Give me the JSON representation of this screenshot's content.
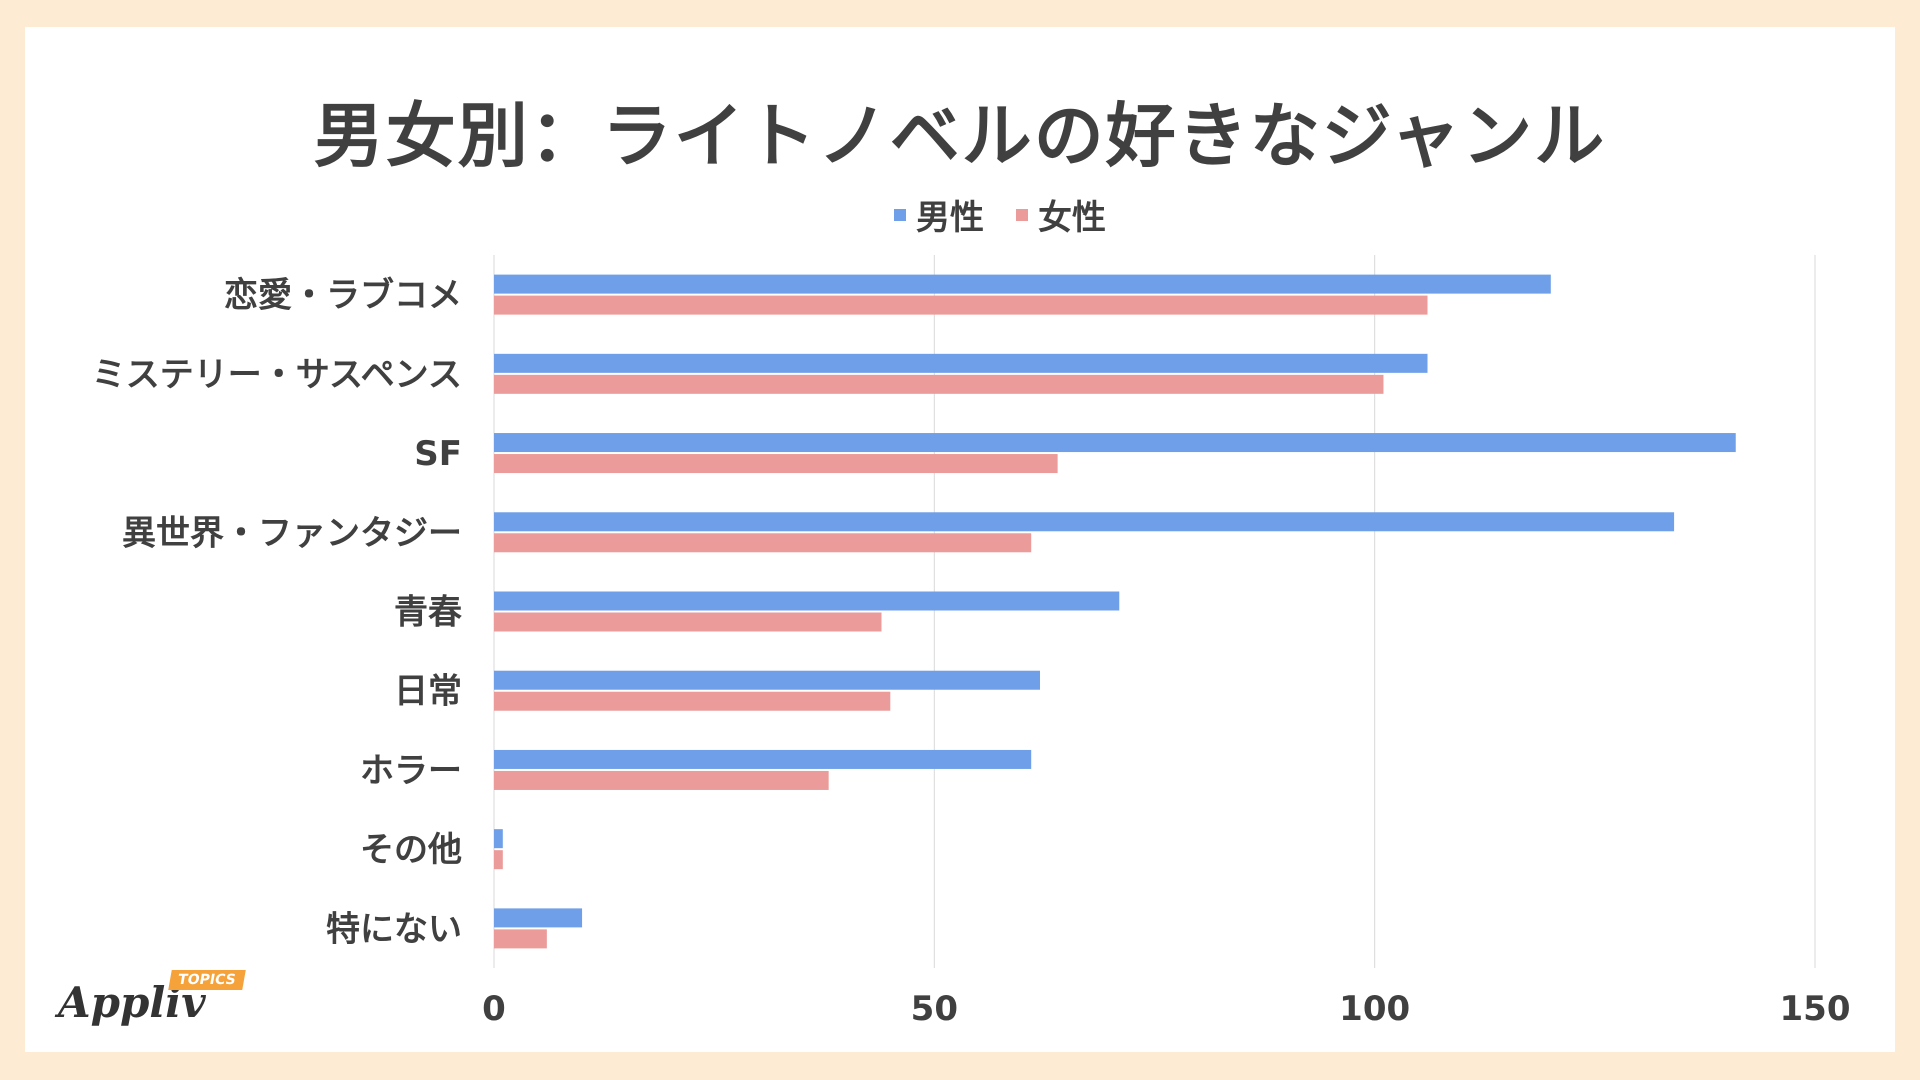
{
  "title": "男女別：ライトノベルの好きなジャンル",
  "logo": {
    "word": "Appliv",
    "badge": "TOPICS"
  },
  "colors": {
    "male": "#6f9fe8",
    "female": "#eb9b99",
    "grid": "#d9d9d9",
    "text": "#404040"
  },
  "legend": [
    {
      "label": "男性",
      "color": "#6f9fe8"
    },
    {
      "label": "女性",
      "color": "#eb9b99"
    }
  ],
  "chart_data": {
    "type": "bar",
    "orientation": "horizontal",
    "title": "男女別：ライトノベルの好きなジャンル",
    "categories": [
      "恋愛・ラブコメ",
      "ミステリー・サスペンス",
      "SF",
      "異世界・ファンタジー",
      "青春",
      "日常",
      "ホラー",
      "その他",
      "特にない"
    ],
    "series": [
      {
        "name": "男性",
        "color": "#6f9fe8",
        "values": [
          120,
          106,
          141,
          134,
          71,
          62,
          61,
          1,
          10
        ]
      },
      {
        "name": "女性",
        "color": "#eb9b99",
        "values": [
          106,
          101,
          64,
          61,
          44,
          45,
          38,
          1,
          6
        ]
      }
    ],
    "xlim": [
      0,
      150
    ],
    "xticks": [
      0,
      50,
      100,
      150
    ],
    "grid": true,
    "legend_position": "top"
  }
}
